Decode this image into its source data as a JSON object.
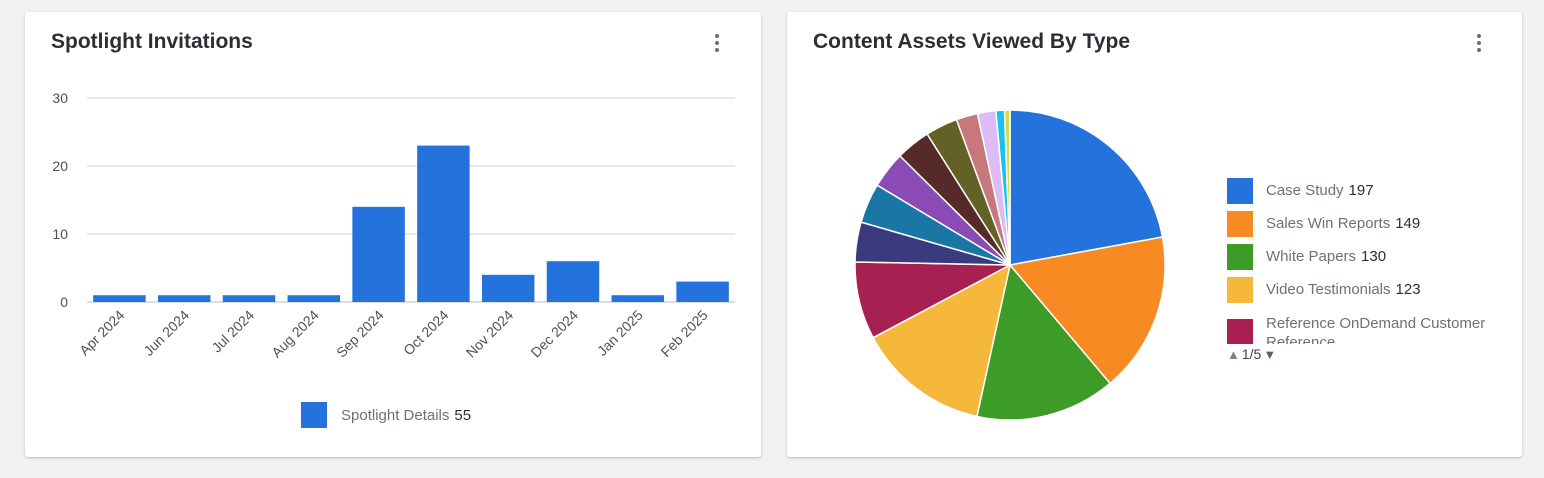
{
  "cards": {
    "left": {
      "title": "Spotlight Invitations"
    },
    "right": {
      "title": "Content Assets Viewed By Type"
    }
  },
  "chart_data": [
    {
      "type": "bar",
      "title": "Spotlight Invitations",
      "categories": [
        "Apr 2024",
        "Jun 2024",
        "Jul 2024",
        "Aug 2024",
        "Sep 2024",
        "Oct 2024",
        "Nov 2024",
        "Dec 2024",
        "Jan 2025",
        "Feb 2025"
      ],
      "series": [
        {
          "name": "Spotlight Details",
          "values": [
            1,
            1,
            1,
            1,
            14,
            23,
            4,
            6,
            1,
            3
          ],
          "total": "55",
          "color": "#2473dd"
        }
      ],
      "ylim": [
        0,
        30
      ],
      "yticks": [
        "0",
        "10",
        "20",
        "30"
      ],
      "grid": true,
      "legend": "bottom-center"
    },
    {
      "type": "pie",
      "title": "Content Assets Viewed By Type",
      "slices": [
        {
          "label": "Case Study",
          "value": 197,
          "color": "#2473dd"
        },
        {
          "label": "Sales Win Reports",
          "value": 149,
          "color": "#f88a24"
        },
        {
          "label": "White Papers",
          "value": 130,
          "color": "#3d9b27"
        },
        {
          "label": "Video Testimonials",
          "value": 123,
          "color": "#f5b83b"
        },
        {
          "label": "Reference OnDemand Customer Reference",
          "value": 72,
          "color": "#a82052"
        },
        {
          "value": 37,
          "color": "#3a3b7d"
        },
        {
          "value": 37,
          "color": "#1a76a4"
        },
        {
          "value": 34,
          "color": "#8a4bb7"
        },
        {
          "value": 32,
          "color": "#572a2a"
        },
        {
          "value": 30,
          "color": "#646127"
        },
        {
          "value": 20,
          "color": "#c7787a"
        },
        {
          "value": 17,
          "color": "#dcbcf6"
        },
        {
          "value": 8,
          "color": "#17c2ee"
        },
        {
          "value": 5,
          "color": "#d2da4a"
        }
      ],
      "legend_visible": [
        {
          "label": "Case Study",
          "value": "197",
          "color": "#2473dd"
        },
        {
          "label": "Sales Win Reports",
          "value": "149",
          "color": "#f88a24"
        },
        {
          "label": "White Papers",
          "value": "130",
          "color": "#3d9b27"
        },
        {
          "label": "Video Testimonials",
          "value": "123",
          "color": "#f5b83b"
        },
        {
          "label": "Reference OnDemand Customer Reference",
          "value": "",
          "color": "#a82052"
        }
      ],
      "legend_page": "1/5",
      "legend": "right"
    }
  ],
  "icons": {
    "menu": "kebab-menu-icon",
    "page_up": "triangle-up-icon",
    "page_down": "triangle-down-icon"
  }
}
